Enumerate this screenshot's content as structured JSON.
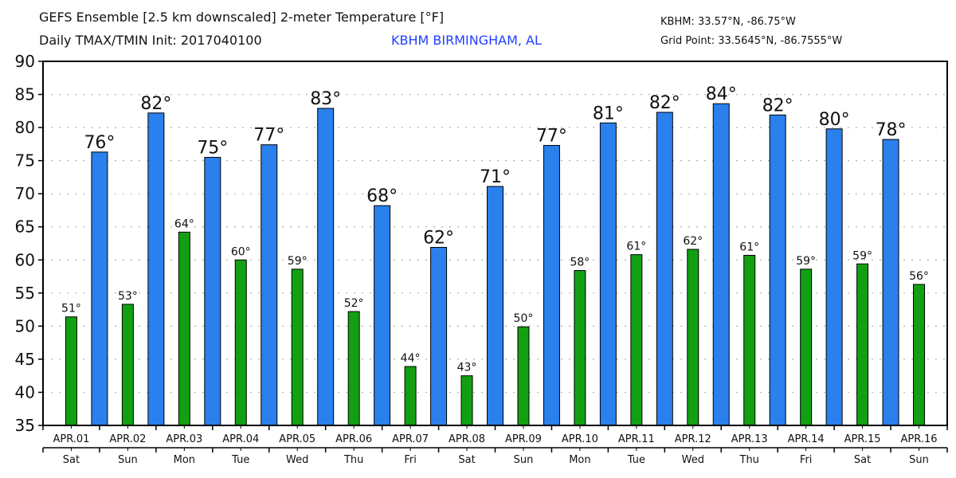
{
  "header": {
    "title_line1": "GEFS Ensemble [2.5 km downscaled] 2-meter Temperature [°F]",
    "title_line2": "Daily TMAX/TMIN Init: 2017040100",
    "station": "KBHM BIRMINGHAM, AL",
    "station_coords": "KBHM: 33.57°N, -86.75°W",
    "grid_point": "Grid Point: 33.5645°N, -86.7555°W"
  },
  "colors": {
    "tmax": "#2a80ec",
    "tmin": "#12a012",
    "station_text": "#2040ff",
    "grid": "#b0b0b0"
  },
  "chart_data": {
    "type": "bar",
    "title": "GEFS Ensemble [2.5 km downscaled] 2-meter Temperature [°F]",
    "subtitle": "Daily TMAX/TMIN Init: 2017040100",
    "xlabel": "",
    "ylabel": "°F",
    "ylim": [
      35,
      90
    ],
    "yticks": [
      35,
      40,
      45,
      50,
      55,
      60,
      65,
      70,
      75,
      80,
      85,
      90
    ],
    "grid": true,
    "categories": [
      "APR.01",
      "APR.02",
      "APR.03",
      "APR.04",
      "APR.05",
      "APR.06",
      "APR.07",
      "APR.08",
      "APR.09",
      "APR.10",
      "APR.11",
      "APR.12",
      "APR.13",
      "APR.14",
      "APR.15",
      "APR.16"
    ],
    "weekdays": [
      "Sat",
      "Sun",
      "Mon",
      "Tue",
      "Wed",
      "Thu",
      "Fri",
      "Sat",
      "Sun",
      "Mon",
      "Tue",
      "Wed",
      "Thu",
      "Fri",
      "Sat",
      "Sun"
    ],
    "series": [
      {
        "name": "TMIN",
        "values": [
          51.4,
          53.3,
          64.2,
          60.0,
          58.6,
          52.2,
          43.9,
          42.5,
          49.9,
          58.4,
          60.8,
          61.6,
          60.7,
          58.6,
          59.4,
          56.3
        ],
        "labels": [
          "51°",
          "53°",
          "64°",
          "60°",
          "59°",
          "52°",
          "44°",
          "43°",
          "50°",
          "58°",
          "61°",
          "62°",
          "61°",
          "59°",
          "59°",
          "56°"
        ]
      },
      {
        "name": "TMAX",
        "values": [
          null,
          76.3,
          82.2,
          75.5,
          77.4,
          82.9,
          68.2,
          61.9,
          71.1,
          77.3,
          80.7,
          82.3,
          83.6,
          81.9,
          79.8,
          78.2
        ],
        "labels": [
          null,
          "76°",
          "82°",
          "75°",
          "77°",
          "83°",
          "68°",
          "62°",
          "71°",
          "77°",
          "81°",
          "82°",
          "84°",
          "82°",
          "80°",
          "78°"
        ]
      }
    ]
  }
}
